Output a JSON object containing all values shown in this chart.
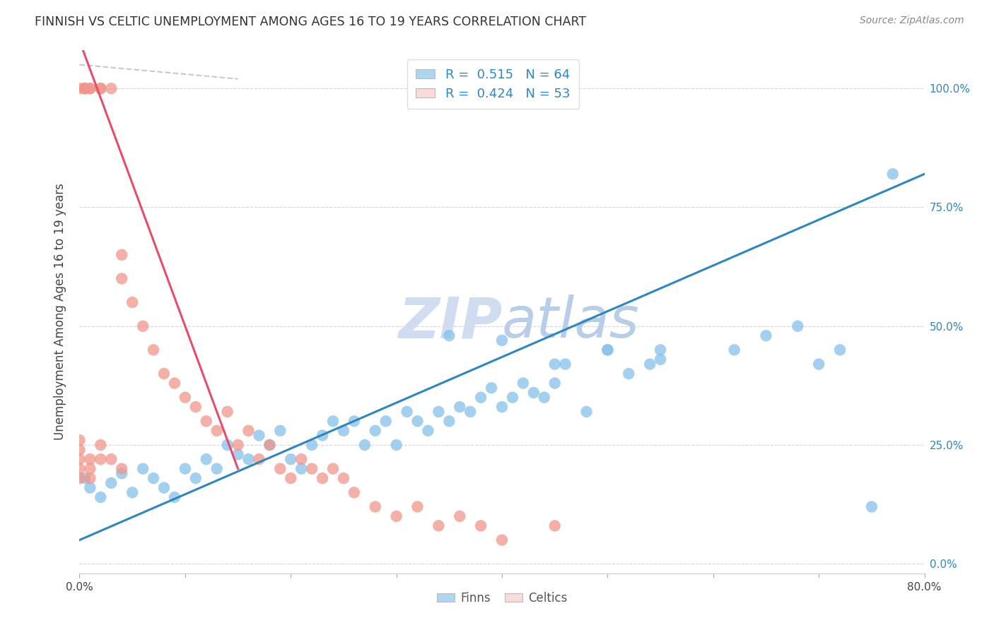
{
  "title": "FINNISH VS CELTIC UNEMPLOYMENT AMONG AGES 16 TO 19 YEARS CORRELATION CHART",
  "source": "Source: ZipAtlas.com",
  "ylabel": "Unemployment Among Ages 16 to 19 years",
  "xlim": [
    0.0,
    0.8
  ],
  "ylim": [
    -0.02,
    1.08
  ],
  "ytick_positions": [
    0.0,
    0.25,
    0.5,
    0.75,
    1.0
  ],
  "ytick_labels_right": [
    "0.0%",
    "25.0%",
    "50.0%",
    "75.0%",
    "100.0%"
  ],
  "finns_color": "#85C1E9",
  "celtics_color": "#F1948A",
  "finns_line_color": "#2E86C1",
  "celtics_line_color": "#E74C6A",
  "legend_box_color_finns": "#AED6F1",
  "legend_box_color_celtics": "#FADBD8",
  "R_finns": 0.515,
  "N_finns": 64,
  "R_celtics": 0.424,
  "N_celtics": 53,
  "watermark_color": "#D6E8F7",
  "background_color": "#FFFFFF",
  "grid_color": "#CCCCCC",
  "finns_x": [
    0.005,
    0.01,
    0.02,
    0.03,
    0.04,
    0.05,
    0.06,
    0.07,
    0.08,
    0.09,
    0.1,
    0.11,
    0.12,
    0.13,
    0.14,
    0.15,
    0.16,
    0.17,
    0.18,
    0.19,
    0.2,
    0.21,
    0.22,
    0.23,
    0.24,
    0.25,
    0.26,
    0.27,
    0.28,
    0.29,
    0.3,
    0.31,
    0.32,
    0.33,
    0.34,
    0.35,
    0.36,
    0.37,
    0.38,
    0.39,
    0.4,
    0.41,
    0.42,
    0.43,
    0.44,
    0.45,
    0.46,
    0.48,
    0.5,
    0.52,
    0.54,
    0.55,
    0.35,
    0.4,
    0.45,
    0.5,
    0.55,
    0.62,
    0.65,
    0.68,
    0.7,
    0.72,
    0.75,
    0.77
  ],
  "finns_y": [
    0.18,
    0.16,
    0.14,
    0.17,
    0.19,
    0.15,
    0.2,
    0.18,
    0.16,
    0.14,
    0.2,
    0.18,
    0.22,
    0.2,
    0.25,
    0.23,
    0.22,
    0.27,
    0.25,
    0.28,
    0.22,
    0.2,
    0.25,
    0.27,
    0.3,
    0.28,
    0.3,
    0.25,
    0.28,
    0.3,
    0.25,
    0.32,
    0.3,
    0.28,
    0.32,
    0.3,
    0.33,
    0.32,
    0.35,
    0.37,
    0.33,
    0.35,
    0.38,
    0.36,
    0.35,
    0.38,
    0.42,
    0.32,
    0.45,
    0.4,
    0.42,
    0.45,
    0.48,
    0.47,
    0.42,
    0.45,
    0.43,
    0.45,
    0.48,
    0.5,
    0.42,
    0.45,
    0.12,
    0.82
  ],
  "celtics_x": [
    0.0,
    0.0,
    0.0,
    0.0,
    0.0,
    0.0,
    0.005,
    0.005,
    0.005,
    0.01,
    0.01,
    0.01,
    0.01,
    0.01,
    0.02,
    0.02,
    0.02,
    0.02,
    0.03,
    0.03,
    0.04,
    0.04,
    0.04,
    0.05,
    0.06,
    0.07,
    0.08,
    0.09,
    0.1,
    0.11,
    0.12,
    0.13,
    0.14,
    0.15,
    0.16,
    0.17,
    0.18,
    0.19,
    0.2,
    0.21,
    0.22,
    0.23,
    0.24,
    0.25,
    0.26,
    0.28,
    0.3,
    0.32,
    0.34,
    0.36,
    0.38,
    0.4,
    0.45
  ],
  "celtics_y": [
    0.18,
    0.2,
    0.22,
    0.24,
    0.26,
    1.0,
    1.0,
    1.0,
    1.0,
    0.18,
    0.2,
    0.22,
    1.0,
    1.0,
    1.0,
    1.0,
    0.25,
    0.22,
    1.0,
    0.22,
    0.6,
    0.65,
    0.2,
    0.55,
    0.5,
    0.45,
    0.4,
    0.38,
    0.35,
    0.33,
    0.3,
    0.28,
    0.32,
    0.25,
    0.28,
    0.22,
    0.25,
    0.2,
    0.18,
    0.22,
    0.2,
    0.18,
    0.2,
    0.18,
    0.15,
    0.12,
    0.1,
    0.12,
    0.08,
    0.1,
    0.08,
    0.05,
    0.08
  ],
  "finns_line_x": [
    0.0,
    0.8
  ],
  "finns_line_y": [
    0.05,
    0.82
  ],
  "celtics_line_x": [
    0.0,
    0.15
  ],
  "celtics_line_y": [
    1.1,
    0.2
  ]
}
